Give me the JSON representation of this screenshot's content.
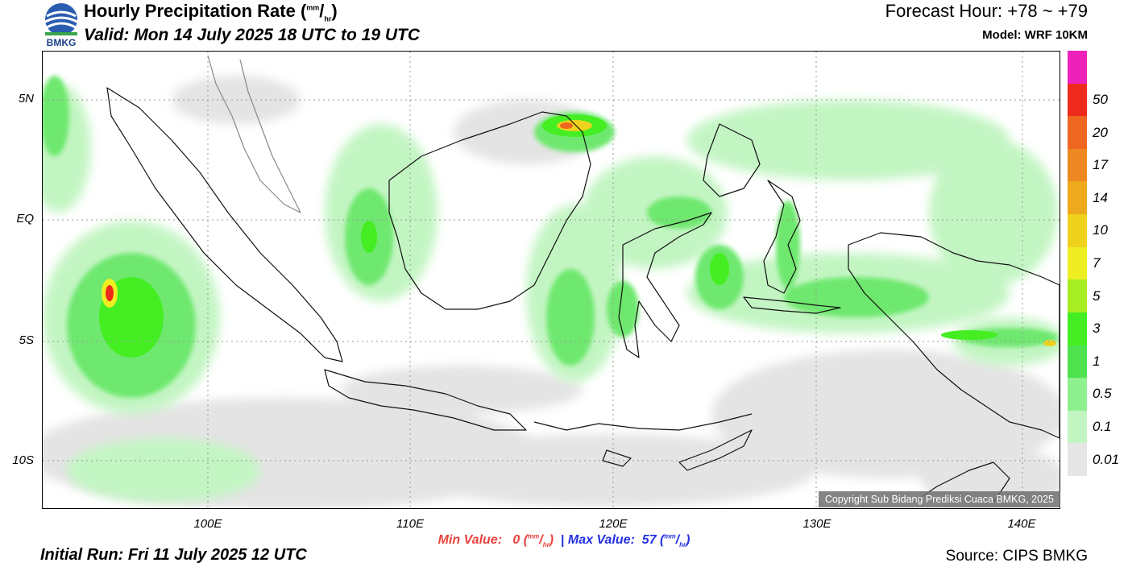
{
  "header": {
    "logo_text": "BMKG",
    "title_main": "Hourly Precipitation Rate (",
    "title_unit_num": "mm",
    "title_unit_sep": "/",
    "title_unit_den": "hr",
    "title_close": ")",
    "valid": "Valid: Mon 14 July 2025 18 UTC to 19 UTC",
    "forecast_hour": "Forecast Hour: +78 ~ +79",
    "model": "Model: WRF 10KM"
  },
  "map": {
    "lat_labels": [
      "5N",
      "EQ",
      "5S",
      "10S"
    ],
    "lon_labels": [
      "100E",
      "110E",
      "120E",
      "130E",
      "140E"
    ],
    "copyright": "Copyright Sub Bidang Prediksi Cuaca BMKG, 2025"
  },
  "colorbar": {
    "levels": [
      "0.01",
      "0.1",
      "0.5",
      "1",
      "3",
      "5",
      "7",
      "10",
      "14",
      "17",
      "20",
      "50"
    ],
    "colors": [
      "#e6e6e6",
      "#c3f5c3",
      "#8ff08f",
      "#4fe34f",
      "#44ee22",
      "#a6ee22",
      "#eeee22",
      "#eed21e",
      "#eeaa1c",
      "#ee8822",
      "#ee6620",
      "#ee2a1c",
      "#ee22bb"
    ]
  },
  "footer": {
    "min_label": "Min Value:",
    "min_value": "0",
    "max_label": "Max Value:",
    "max_value": "57",
    "unit_num": "mm",
    "unit_den": "hr",
    "initial_run": "Initial Run: Fri 11 July 2025 12 UTC",
    "source": "Source: CIPS BMKG"
  }
}
